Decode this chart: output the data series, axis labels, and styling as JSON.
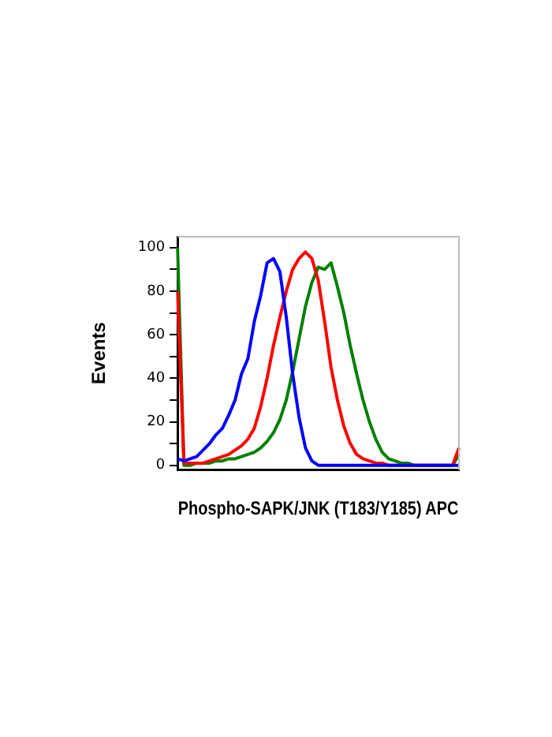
{
  "chart_data": {
    "type": "line",
    "xlabel": "Phospho-SAPK/JNK (T183/Y185) APC",
    "ylabel": "Events",
    "categories": [
      null,
      null,
      null,
      null,
      null,
      null,
      null,
      null,
      null,
      null,
      null,
      null,
      null,
      null,
      null,
      null,
      null,
      null,
      null,
      null,
      null,
      null,
      null,
      null,
      null,
      null,
      null,
      null,
      null,
      null,
      null,
      null,
      null,
      null,
      null,
      null,
      null,
      null,
      null,
      null,
      null,
      null,
      null,
      null,
      null
    ],
    "series": [
      {
        "color": "#0000ff",
        "values": [
          3,
          2,
          3,
          4,
          7,
          10,
          14,
          17,
          23,
          30,
          42,
          49,
          66,
          78,
          93,
          95,
          89,
          68,
          42,
          22,
          8,
          2,
          0,
          0,
          0,
          0,
          0,
          0,
          0,
          0,
          0,
          0,
          0,
          0,
          0,
          0,
          0,
          0,
          0,
          0,
          0,
          0,
          0,
          0,
          0
        ]
      },
      {
        "color": "#ff0000",
        "values": [
          80,
          1,
          1,
          1,
          1,
          2,
          3,
          4,
          5,
          7,
          9,
          12,
          17,
          27,
          40,
          55,
          68,
          80,
          90,
          95,
          98,
          95,
          85,
          66,
          45,
          30,
          18,
          10,
          5,
          3,
          2,
          1,
          1,
          0,
          0,
          0,
          0,
          0,
          0,
          0,
          0,
          0,
          0,
          0,
          8
        ]
      },
      {
        "color": "#008000",
        "values": [
          100,
          0,
          0,
          1,
          1,
          1,
          2,
          2,
          3,
          3,
          4,
          5,
          6,
          8,
          11,
          15,
          21,
          30,
          43,
          58,
          73,
          84,
          91,
          90,
          93,
          82,
          70,
          55,
          42,
          30,
          20,
          12,
          6,
          3,
          2,
          1,
          1,
          0,
          0,
          0,
          0,
          0,
          0,
          0,
          5
        ]
      }
    ],
    "ylim": [
      -2,
      105
    ],
    "yticks": [
      0,
      {
        "value": 10,
        "label": null
      },
      20,
      {
        "value": 30,
        "label": null
      },
      40,
      {
        "value": 50,
        "label": null
      },
      60,
      {
        "value": 70,
        "label": null
      },
      80,
      {
        "value": 90,
        "label": null
      },
      100
    ],
    "tick_labels": "y",
    "grid": false,
    "legend": false,
    "marker": "none",
    "line_style": "solid"
  }
}
